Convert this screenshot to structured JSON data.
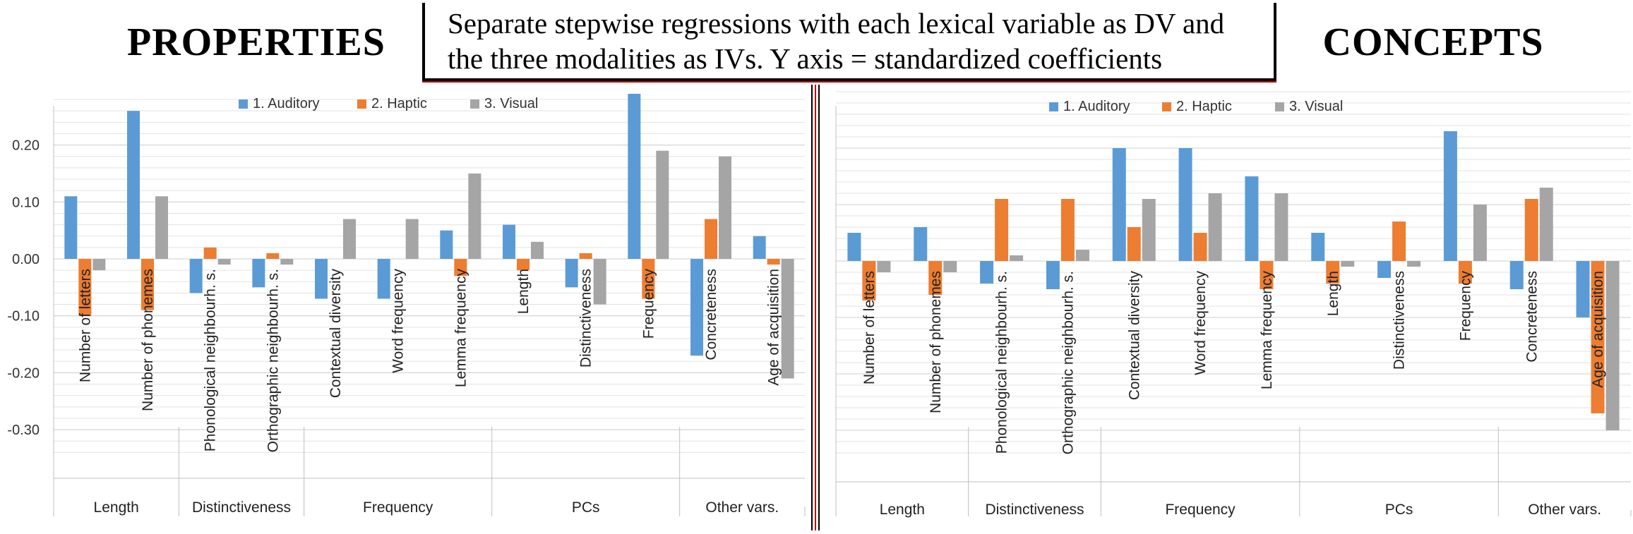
{
  "header": {
    "left_title": "PROPERTIES",
    "right_title": "CONCEPTS",
    "center_line1": "Separate stepwise regressions with each lexical variable as DV and",
    "center_line2": "the three modalities as IVs. Y axis = standardized coefficients"
  },
  "colors": {
    "auditory": "#5b9bd5",
    "haptic": "#ed7d31",
    "visual": "#a5a5a5"
  },
  "chart_data": [
    {
      "type": "bar",
      "title": "PROPERTIES",
      "ylim": [
        -0.4,
        0.3
      ],
      "yticks": [
        "0.20",
        "0.10",
        "0.00",
        "-0.10",
        "-0.20",
        "-0.30"
      ],
      "ytick_values": [
        0.2,
        0.1,
        0.0,
        -0.1,
        -0.2,
        -0.3
      ],
      "legend_position": "top-center",
      "categories": [
        "Number of letters",
        "Number of phonemes",
        "Phonological neighbourh. s.",
        "Orthographic neighbourh. s.",
        "Contextual diversity",
        "Word frequency",
        "Lemma frequency",
        "Length",
        "Distinctiveness",
        "Frequency",
        "Concreteness",
        "Age of acquisition"
      ],
      "groups": [
        {
          "label": "Length",
          "count": 2
        },
        {
          "label": "Distinctiveness",
          "count": 2
        },
        {
          "label": "Frequency",
          "count": 3
        },
        {
          "label": "PCs",
          "count": 3
        },
        {
          "label": "Other vars.",
          "count": 2
        }
      ],
      "series": [
        {
          "name": "1. Auditory",
          "values": [
            0.11,
            0.26,
            -0.06,
            -0.05,
            -0.07,
            -0.07,
            0.05,
            0.06,
            -0.05,
            0.29,
            -0.17,
            0.04
          ]
        },
        {
          "name": "2. Haptic",
          "values": [
            -0.1,
            -0.09,
            0.02,
            0.01,
            0.0,
            0.0,
            -0.03,
            -0.02,
            0.01,
            -0.07,
            0.07,
            -0.01
          ]
        },
        {
          "name": "3. Visual",
          "values": [
            -0.02,
            0.11,
            -0.01,
            -0.01,
            0.07,
            0.07,
            0.15,
            0.03,
            -0.08,
            0.19,
            0.18,
            -0.21
          ]
        }
      ]
    },
    {
      "type": "bar",
      "title": "CONCEPTS",
      "ylim": [
        -0.4,
        0.3
      ],
      "legend_position": "top-center",
      "categories": [
        "Number of letters",
        "Number of phonemes",
        "Phonological neighbourh. s.",
        "Orthographic neighbourh. s.",
        "Contextual diversity",
        "Word frequency",
        "Lemma frequency",
        "Length",
        "Distinctiveness",
        "Frequency",
        "Concreteness",
        "Age of acquisition"
      ],
      "groups": [
        {
          "label": "Length",
          "count": 2
        },
        {
          "label": "Distinctiveness",
          "count": 2
        },
        {
          "label": "Frequency",
          "count": 3
        },
        {
          "label": "PCs",
          "count": 3
        },
        {
          "label": "Other vars.",
          "count": 2
        }
      ],
      "series": [
        {
          "name": "1. Auditory",
          "values": [
            0.05,
            0.06,
            -0.04,
            -0.05,
            0.2,
            0.2,
            0.15,
            0.05,
            -0.03,
            0.23,
            -0.05,
            -0.1
          ]
        },
        {
          "name": "2. Haptic",
          "values": [
            -0.07,
            -0.06,
            0.11,
            0.11,
            0.06,
            0.05,
            -0.05,
            -0.04,
            0.07,
            -0.04,
            0.11,
            -0.27
          ]
        },
        {
          "name": "3. Visual",
          "values": [
            -0.02,
            -0.02,
            0.01,
            0.02,
            0.11,
            0.12,
            0.12,
            -0.01,
            -0.01,
            0.1,
            0.13,
            -0.3
          ]
        }
      ]
    }
  ]
}
